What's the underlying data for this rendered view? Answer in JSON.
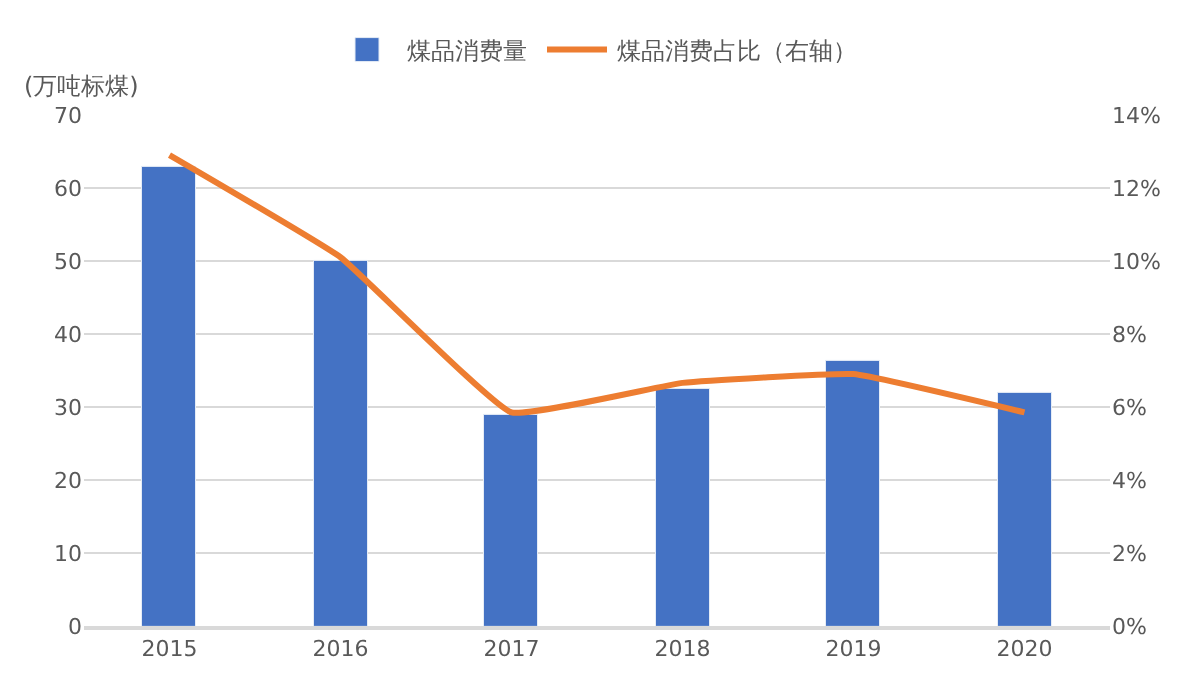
{
  "chart_data": {
    "type": "bar",
    "categories": [
      "2015",
      "2016",
      "2017",
      "2018",
      "2019",
      "2020"
    ],
    "ylabel": "(万吨标煤)",
    "series": [
      {
        "name": "煤品消费量",
        "color": "#4472c4",
        "values": [
          62.8,
          50,
          29,
          32.5,
          36.2,
          32
        ]
      },
      {
        "name": "煤品消费占比（右轴）",
        "type": "line",
        "axis": "y2",
        "color": "#ed7d31",
        "values": [
          12.9,
          10.1,
          5.85,
          6.66,
          6.9,
          5.85
        ]
      }
    ],
    "ylim": [
      0,
      70
    ],
    "yticks": [
      0,
      10,
      20,
      30,
      40,
      50,
      60,
      70
    ],
    "y2lim": [
      0,
      14
    ],
    "y2ticks": [
      {
        "value": 0,
        "label": "0%"
      },
      {
        "value": 2,
        "label": "2%"
      },
      {
        "value": 4,
        "label": "4%"
      },
      {
        "value": 6,
        "label": "6%"
      },
      {
        "value": 8,
        "label": "8%"
      },
      {
        "value": 10,
        "label": "10%"
      },
      {
        "value": 12,
        "label": "12%"
      },
      {
        "value": 14,
        "label": "14%"
      }
    ],
    "grid": "y",
    "legend": "top",
    "marker": "none",
    "line_style": "solid"
  }
}
